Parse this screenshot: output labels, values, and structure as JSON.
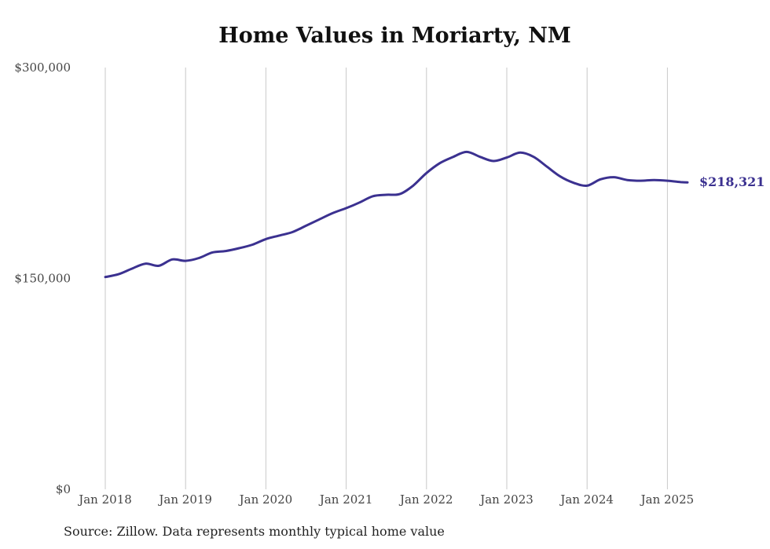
{
  "chart_data": {
    "type": "line",
    "title": "Home Values in Moriarty, NM",
    "xlabel": "",
    "ylabel": "",
    "ylim": [
      0,
      300000
    ],
    "y_ticks": [
      {
        "value": 0,
        "label": "$0"
      },
      {
        "value": 150000,
        "label": "$150,000"
      },
      {
        "value": 300000,
        "label": "$300,000"
      }
    ],
    "x_ticks": [
      {
        "value": "2018-01",
        "label": "Jan 2018"
      },
      {
        "value": "2019-01",
        "label": "Jan 2019"
      },
      {
        "value": "2020-01",
        "label": "Jan 2020"
      },
      {
        "value": "2021-01",
        "label": "Jan 2021"
      },
      {
        "value": "2022-01",
        "label": "Jan 2022"
      },
      {
        "value": "2023-01",
        "label": "Jan 2023"
      },
      {
        "value": "2024-01",
        "label": "Jan 2024"
      },
      {
        "value": "2025-01",
        "label": "Jan 2025"
      }
    ],
    "grid": "vertical",
    "line_color": "#3b3190",
    "end_label": "$218,321",
    "x": [
      "2018-01",
      "2018-03",
      "2018-05",
      "2018-07",
      "2018-09",
      "2018-11",
      "2019-01",
      "2019-03",
      "2019-05",
      "2019-07",
      "2019-09",
      "2019-11",
      "2020-01",
      "2020-03",
      "2020-05",
      "2020-07",
      "2020-09",
      "2020-11",
      "2021-01",
      "2021-03",
      "2021-05",
      "2021-07",
      "2021-09",
      "2021-11",
      "2022-01",
      "2022-03",
      "2022-05",
      "2022-07",
      "2022-09",
      "2022-11",
      "2023-01",
      "2023-03",
      "2023-05",
      "2023-07",
      "2023-09",
      "2023-11",
      "2024-01",
      "2024-03",
      "2024-05",
      "2024-07",
      "2024-09",
      "2024-11",
      "2025-01",
      "2025-03",
      "2025-04"
    ],
    "y": [
      151000,
      153000,
      157000,
      160500,
      159000,
      163500,
      162500,
      164500,
      168500,
      169500,
      171500,
      174000,
      178000,
      180500,
      183000,
      187500,
      192000,
      196500,
      200000,
      204000,
      208500,
      209500,
      210000,
      216000,
      225000,
      232000,
      236500,
      240000,
      236500,
      233500,
      236000,
      239500,
      236500,
      229500,
      222500,
      218000,
      216000,
      220500,
      222000,
      220000,
      219500,
      220000,
      219500,
      218500,
      218321
    ]
  },
  "source": "Source: Zillow. Data represents monthly typical home value"
}
